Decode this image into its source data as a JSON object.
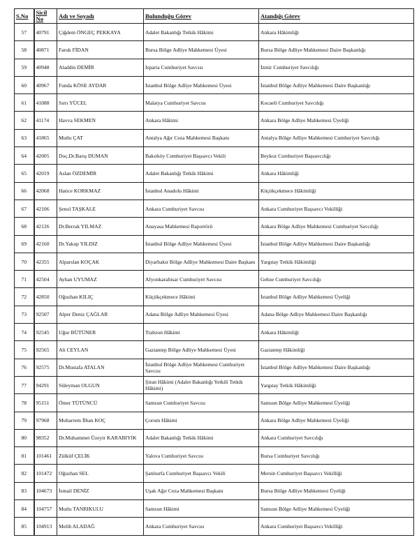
{
  "headers": [
    "S.No",
    "Sicil No",
    "Adı ve Soyadı",
    "Bulunduğu Görev",
    "Atandığı Görev"
  ],
  "rows": [
    [
      "57",
      "40791",
      "Çiğdem ÖNGEÇ PEKKAYA",
      "Adalet Bakanlığı Tetkik Hâkimi",
      "Ankara Hâkimliği"
    ],
    [
      "58",
      "40871",
      "Faruk FİDAN",
      "Bursa Bölge Adliye Mahkemesi Üyesi",
      "Bursa Bölge Adliye Mahkemesi Daire Başkanlığı"
    ],
    [
      "59",
      "40948",
      "Aladdin DEMİR",
      "Isparta Cumhuriyet Savcısı",
      "İzmir Cumhuriyet Savcılığı"
    ],
    [
      "60",
      "40967",
      "Funda KÖSE AYDAR",
      "İstanbul Bölge Adliye Mahkemesi Üyesi",
      "İstanbul Bölge Adliye Mahkemesi Daire Başkanlığı"
    ],
    [
      "61",
      "41088",
      "Sırrı YÜCEL",
      "Malatya Cumhuriyet Savcısı",
      "Kocaeli Cumhuriyet Savcılığı"
    ],
    [
      "62",
      "41174",
      "Havva SEKMEN",
      "Ankara Hâkimi",
      "Ankara Bölge Adliye Mahkemesi Üyeliği"
    ],
    [
      "63",
      "41865",
      "Mutlu ÇAT",
      "Antalya Ağır Ceza Mahkemesi Başkanı",
      "Antalya Bölge Adliye Mahkemesi Cumhuriyet Savcılığı"
    ],
    [
      "64",
      "42005",
      "Doç.Dr.Barış DUMAN",
      "Bakırköy Cumhuriyet Başsavcı Vekili",
      "Beykoz Cumhuriyet Başsavcılığı"
    ],
    [
      "65",
      "42019",
      "Aslan ÖZDEMİR",
      "Adalet Bakanlığı Tetkik Hâkimi",
      "Ankara Hâkimliği"
    ],
    [
      "66",
      "42068",
      "Hatice KORKMAZ",
      "İstanbul Anadolu Hâkimi",
      "Küçükçekmece Hâkimliği"
    ],
    [
      "67",
      "42106",
      "Şenol TAŞKALE",
      "Ankara Cumhuriyet Savcısı",
      "Ankara Cumhuriyet Başsavcı Vekilliği"
    ],
    [
      "68",
      "42126",
      "Dr.Berrak YILMAZ",
      "Anayasa Mahkemesi Raportörü",
      "Ankara Bölge Adliye Mahkemesi Cumhuriyet Savcılığı"
    ],
    [
      "69",
      "42160",
      "Dr.Yakup YILDIZ",
      "İstanbul Bölge Adliye Mahkemesi Üyesi",
      "İstanbul Bölge Adliye Mahkemesi Daire Başkanlığı"
    ],
    [
      "70",
      "42355",
      "Alparslan KOÇAK",
      "Diyarbakır Bölge Adliye Mahkemesi Daire Başkanı",
      "Yargıtay Tetkik Hâkimliği"
    ],
    [
      "71",
      "42504",
      "Ayhan UYUMAZ",
      "Afyonkarahisar Cumhuriyet Savcısı",
      "Gebze Cumhuriyet Savcılığı"
    ],
    [
      "72",
      "42850",
      "Oğuzhan KILIÇ",
      "Küçükçekmece Hâkimi",
      "İstanbul Bölge Adliye Mahkemesi Üyeliği"
    ],
    [
      "73",
      "92507",
      "Alper Deniz ÇAĞLAR",
      "Adana Bölge Adliye Mahkemesi Üyesi",
      "Adana Bölge Adliye Mahkemesi Daire Başkanlığı"
    ],
    [
      "74",
      "92545",
      "Uğur BÜTÜNER",
      "Trabzon Hâkimi",
      "Ankara Hâkimliği"
    ],
    [
      "75",
      "92565",
      "Ali CEYLAN",
      "Gaziantep Bölge Adliye Mahkemesi Üyesi",
      "Gaziantep Hâkimliği"
    ],
    [
      "76",
      "92575",
      "Dr.Mustafa ATALAN",
      "İstanbul Bölge Adliye Mahkemesi Cumhuriyet Savcısı",
      "İstanbul Bölge Adliye Mahkemesi Daire Başkanlığı"
    ],
    [
      "77",
      "94291",
      "Süleyman OLGUN",
      "Şiran Hâkimi (Adalet Bakanlığı Yetkili Tetkik Hâkimi)",
      "Yargıtay Tetkik Hâkimliği"
    ],
    [
      "78",
      "95151",
      "Ömer TÜTÜNCÜ",
      "Samsun Cumhuriyet Savcısı",
      "Samsun Bölge Adliye Mahkemesi Üyeliği"
    ],
    [
      "79",
      "97968",
      "Muharrem İlhan KOÇ",
      "Çorum Hâkimi",
      "Ankara Bölge Adliye Mahkemesi Üyeliği"
    ],
    [
      "80",
      "98352",
      "Dr.Muhammet Üzeyir KARABIYIK",
      "Adalet Bakanlığı Tetkik Hâkimi",
      "Ankara Cumhuriyet Savcılığı"
    ],
    [
      "81",
      "101461",
      "Zülküf ÇELİK",
      "Yalova Cumhuriyet Savcısı",
      "Bursa Cumhuriyet Savcılığı"
    ],
    [
      "82",
      "101472",
      "Oğuzhan SEL",
      "Şanlıurfa Cumhuriyet Başsavcı Vekili",
      "Mersin Cumhuriyet Başsavcı Vekilliği"
    ],
    [
      "83",
      "104673",
      "İsmail DENİZ",
      "Uşak Ağır Ceza Mahkemesi Başkanı",
      "Bursa Bölge Adliye Mahkemesi Üyeliği"
    ],
    [
      "84",
      "104757",
      "Mutlu TANRIKULU",
      "Samsun Hâkimi",
      "Samsun Bölge Adliye Mahkemesi Üyeliği"
    ],
    [
      "85",
      "104913",
      "Melih ALADAĞ",
      "Ankara Cumhuriyet Savcısı",
      "Ankara Cumhuriyet Başsavcı Vekilliği"
    ]
  ]
}
